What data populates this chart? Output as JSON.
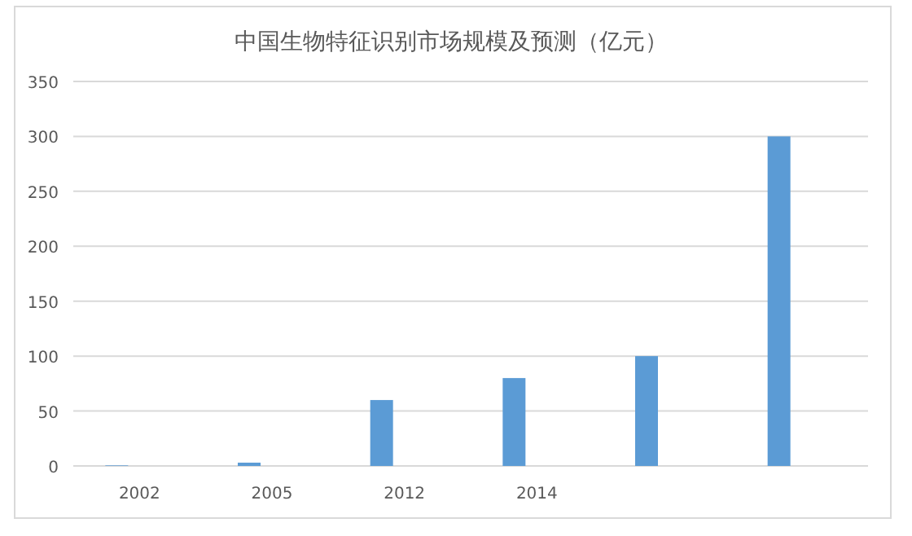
{
  "chart_data": {
    "type": "bar",
    "title": "中国生物特征识别市场规模及预测（亿元）",
    "categories": [
      "2002",
      "2005",
      "2012",
      "2014",
      null,
      null
    ],
    "series": [
      {
        "color": "#5b9bd5",
        "values": [
          0.5,
          3,
          60,
          80,
          100,
          300
        ]
      }
    ],
    "ylim": [
      0,
      350
    ],
    "yticks": [
      0,
      50,
      100,
      150,
      200,
      250,
      300,
      350
    ],
    "grid": "y"
  }
}
